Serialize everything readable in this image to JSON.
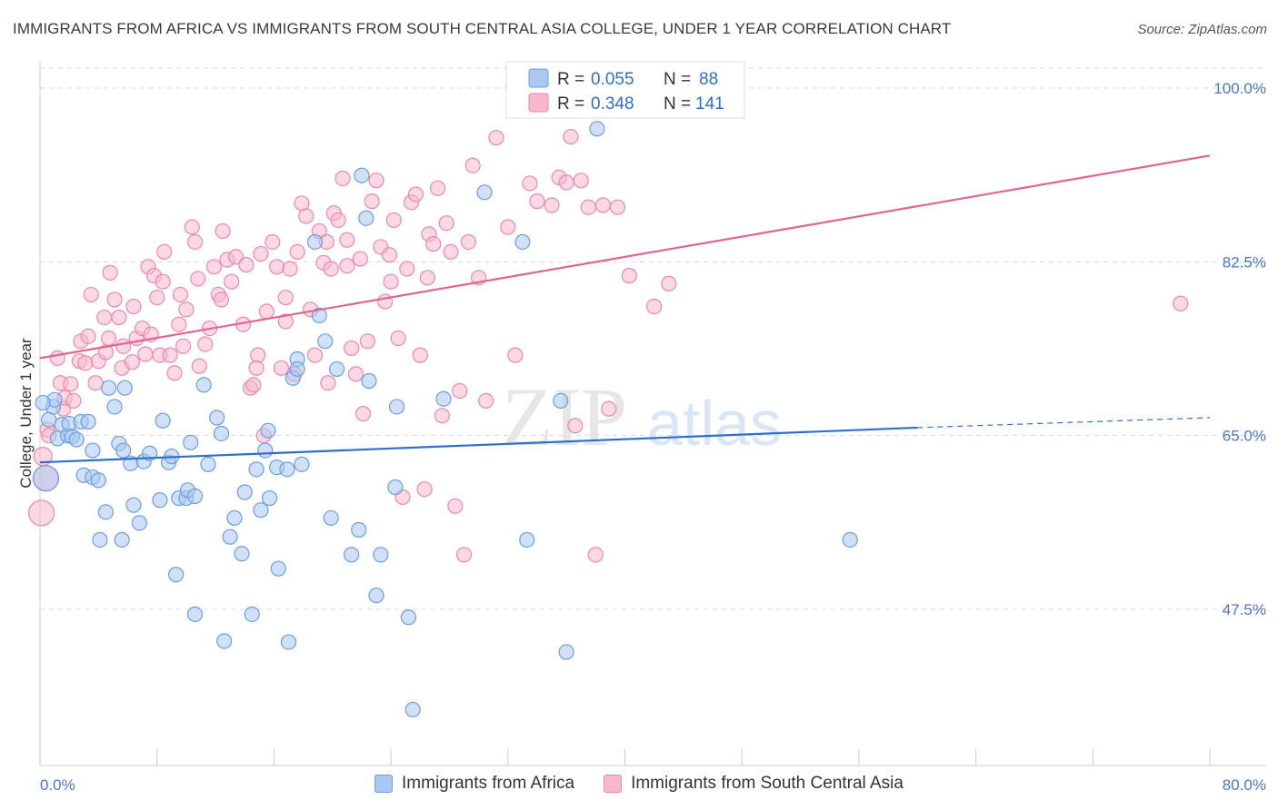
{
  "header": {
    "title": "IMMIGRANTS FROM AFRICA VS IMMIGRANTS FROM SOUTH CENTRAL ASIA COLLEGE, UNDER 1 YEAR CORRELATION CHART",
    "source": "Source: ZipAtlas.com"
  },
  "watermark": {
    "zip": "ZIP",
    "atlas": "atlas"
  },
  "colors": {
    "blue_fill": "#aac8f0",
    "blue_stroke": "#6b9ee0",
    "blue_line": "#2f6fcc",
    "pink_fill": "#f7b8cc",
    "pink_stroke": "#e98aa8",
    "pink_line": "#e06592",
    "grid": "#d9d9d9",
    "tick_label": "#4a76c9"
  },
  "legend": {
    "rows": [
      {
        "r_label": "R = ",
        "r_value": "0.055",
        "n_label": "N = ",
        "n_value": "88"
      },
      {
        "r_label": "R = ",
        "r_value": "0.348",
        "n_label": "N = ",
        "n_value": "141"
      }
    ]
  },
  "bottom_legend": {
    "africa": "Immigrants from Africa",
    "asia": "Immigrants from South Central Asia"
  },
  "chart_data": {
    "type": "scatter",
    "title": "IMMIGRANTS FROM AFRICA VS IMMIGRANTS FROM SOUTH CENTRAL ASIA COLLEGE, UNDER 1 YEAR CORRELATION CHART",
    "xlabel": "",
    "ylabel": "College, Under 1 year",
    "xlim": [
      0,
      80
    ],
    "ylim": [
      32,
      102
    ],
    "x_tick_labels": [
      "0.0%",
      "80.0%"
    ],
    "y_ticks": [
      47.5,
      65.0,
      82.5,
      100.0
    ],
    "y_tick_labels": [
      "47.5%",
      "65.0%",
      "82.5%",
      "100.0%"
    ],
    "grid": true,
    "legend_position": "top-center",
    "series": [
      {
        "name": "Immigrants from Africa",
        "r": 0.055,
        "n": 88,
        "trend": {
          "x0": 0,
          "y0": 62.3,
          "x1": 60,
          "y1": 65.8,
          "dashed_to_x": 80,
          "dashed_to_y": 66.8
        },
        "points": [
          [
            0.4,
            60.7,
            14
          ],
          [
            0.6,
            66.6,
            8
          ],
          [
            0.9,
            67.9,
            8
          ],
          [
            1.0,
            68.6,
            8
          ],
          [
            1.2,
            64.7,
            8
          ],
          [
            1.5,
            66.1,
            8
          ],
          [
            1.9,
            65.0,
            8
          ],
          [
            2.0,
            66.2,
            8
          ],
          [
            2.2,
            64.9,
            8
          ],
          [
            2.5,
            64.6,
            8
          ],
          [
            2.8,
            66.4,
            8
          ],
          [
            3.0,
            61.0,
            8
          ],
          [
            3.3,
            66.4,
            8
          ],
          [
            3.6,
            60.8,
            8
          ],
          [
            3.6,
            63.5,
            8
          ],
          [
            4.0,
            60.5,
            8
          ],
          [
            4.1,
            54.5,
            8
          ],
          [
            4.5,
            57.3,
            8
          ],
          [
            4.7,
            69.8,
            8
          ],
          [
            5.1,
            67.9,
            8
          ],
          [
            5.4,
            64.2,
            8
          ],
          [
            5.6,
            54.5,
            8
          ],
          [
            5.7,
            63.5,
            8
          ],
          [
            5.8,
            69.8,
            8
          ],
          [
            6.2,
            62.2,
            8
          ],
          [
            6.4,
            58.0,
            8
          ],
          [
            6.8,
            56.2,
            8
          ],
          [
            7.1,
            62.4,
            8
          ],
          [
            7.5,
            63.2,
            8
          ],
          [
            8.2,
            58.5,
            8
          ],
          [
            8.4,
            66.5,
            8
          ],
          [
            8.8,
            62.3,
            8
          ],
          [
            9.0,
            62.9,
            8
          ],
          [
            9.3,
            51.0,
            8
          ],
          [
            9.5,
            58.7,
            8
          ],
          [
            10.0,
            58.7,
            8
          ],
          [
            10.1,
            59.5,
            8
          ],
          [
            10.3,
            64.3,
            8
          ],
          [
            10.6,
            58.9,
            8
          ],
          [
            10.6,
            47.0,
            8
          ],
          [
            11.2,
            70.1,
            8
          ],
          [
            11.5,
            62.1,
            8
          ],
          [
            12.1,
            66.8,
            8
          ],
          [
            12.4,
            65.2,
            8
          ],
          [
            12.6,
            44.3,
            8
          ],
          [
            13.0,
            54.8,
            8
          ],
          [
            13.3,
            56.7,
            8
          ],
          [
            13.8,
            53.1,
            8
          ],
          [
            14.0,
            59.3,
            8
          ],
          [
            14.5,
            47.0,
            8
          ],
          [
            14.8,
            61.6,
            8
          ],
          [
            15.1,
            57.5,
            8
          ],
          [
            15.4,
            63.5,
            8
          ],
          [
            15.6,
            65.5,
            8
          ],
          [
            15.7,
            58.7,
            8
          ],
          [
            16.2,
            61.8,
            8
          ],
          [
            16.3,
            51.6,
            8
          ],
          [
            16.9,
            61.6,
            8
          ],
          [
            17.0,
            44.2,
            8
          ],
          [
            17.3,
            70.8,
            8
          ],
          [
            17.6,
            72.7,
            8
          ],
          [
            17.6,
            71.7,
            8
          ],
          [
            17.9,
            62.1,
            8
          ],
          [
            18.8,
            84.5,
            8
          ],
          [
            19.1,
            77.1,
            8
          ],
          [
            19.5,
            74.5,
            8
          ],
          [
            19.9,
            56.7,
            8
          ],
          [
            20.3,
            71.7,
            8
          ],
          [
            21.3,
            53.0,
            8
          ],
          [
            21.8,
            55.5,
            8
          ],
          [
            22.3,
            86.9,
            8
          ],
          [
            22.5,
            70.5,
            8
          ],
          [
            23.0,
            48.9,
            8
          ],
          [
            23.3,
            53.0,
            8
          ],
          [
            24.3,
            59.8,
            8
          ],
          [
            24.4,
            67.9,
            8
          ],
          [
            25.2,
            46.7,
            8
          ],
          [
            25.5,
            37.4,
            8
          ],
          [
            27.6,
            68.7,
            8
          ],
          [
            30.4,
            89.5,
            8
          ],
          [
            33.0,
            84.5,
            8
          ],
          [
            33.3,
            54.5,
            8
          ],
          [
            35.6,
            68.5,
            8
          ],
          [
            36.0,
            43.2,
            8
          ],
          [
            38.1,
            95.9,
            8
          ],
          [
            55.4,
            54.5,
            8
          ],
          [
            0.2,
            68.3,
            8
          ],
          [
            22.0,
            91.2,
            8
          ]
        ]
      },
      {
        "name": "Immigrants from South Central Asia",
        "r": 0.348,
        "n": 141,
        "trend": {
          "x0": 0,
          "y0": 72.8,
          "x1": 80,
          "y1": 93.2
        },
        "points": [
          [
            0.1,
            57.2,
            14
          ],
          [
            0.2,
            62.9,
            10
          ],
          [
            0.4,
            60.7,
            14
          ],
          [
            0.5,
            65.6,
            8
          ],
          [
            0.6,
            65.0,
            8
          ],
          [
            1.2,
            72.8,
            8
          ],
          [
            1.4,
            70.3,
            8
          ],
          [
            1.6,
            67.7,
            8
          ],
          [
            1.7,
            68.8,
            8
          ],
          [
            2.1,
            70.2,
            8
          ],
          [
            2.3,
            68.5,
            8
          ],
          [
            2.7,
            72.5,
            8
          ],
          [
            2.8,
            74.5,
            8
          ],
          [
            3.1,
            72.3,
            8
          ],
          [
            3.3,
            75.0,
            8
          ],
          [
            3.5,
            79.2,
            8
          ],
          [
            3.8,
            70.3,
            8
          ],
          [
            4.0,
            72.5,
            8
          ],
          [
            4.4,
            76.9,
            8
          ],
          [
            4.5,
            73.4,
            8
          ],
          [
            4.7,
            74.8,
            8
          ],
          [
            5.1,
            78.7,
            8
          ],
          [
            5.4,
            76.9,
            8
          ],
          [
            5.6,
            71.8,
            8
          ],
          [
            5.7,
            74.0,
            8
          ],
          [
            6.3,
            72.4,
            8
          ],
          [
            6.4,
            78.0,
            8
          ],
          [
            6.6,
            74.8,
            8
          ],
          [
            7.0,
            75.8,
            8
          ],
          [
            7.2,
            73.2,
            8
          ],
          [
            7.4,
            82.0,
            8
          ],
          [
            7.6,
            75.2,
            8
          ],
          [
            7.8,
            81.1,
            8
          ],
          [
            8.0,
            78.9,
            8
          ],
          [
            8.2,
            73.1,
            8
          ],
          [
            8.4,
            80.5,
            8
          ],
          [
            8.5,
            83.5,
            8
          ],
          [
            8.9,
            73.1,
            8
          ],
          [
            9.2,
            71.3,
            8
          ],
          [
            9.5,
            76.2,
            8
          ],
          [
            9.6,
            79.2,
            8
          ],
          [
            9.8,
            74.0,
            8
          ],
          [
            10.0,
            77.7,
            8
          ],
          [
            10.4,
            86.0,
            8
          ],
          [
            10.6,
            84.5,
            8
          ],
          [
            10.9,
            72.0,
            8
          ],
          [
            11.3,
            74.2,
            8
          ],
          [
            11.6,
            75.8,
            8
          ],
          [
            11.9,
            82.0,
            8
          ],
          [
            12.2,
            79.2,
            8
          ],
          [
            12.5,
            85.6,
            8
          ],
          [
            12.8,
            82.7,
            8
          ],
          [
            13.1,
            80.5,
            8
          ],
          [
            13.4,
            83.0,
            8
          ],
          [
            13.9,
            76.2,
            8
          ],
          [
            14.1,
            82.2,
            8
          ],
          [
            14.4,
            69.8,
            8
          ],
          [
            14.6,
            70.1,
            8
          ],
          [
            14.9,
            73.1,
            8
          ],
          [
            15.1,
            83.3,
            8
          ],
          [
            15.5,
            77.5,
            8
          ],
          [
            15.9,
            84.5,
            8
          ],
          [
            16.2,
            82.0,
            8
          ],
          [
            16.5,
            71.8,
            8
          ],
          [
            16.8,
            78.9,
            8
          ],
          [
            17.1,
            81.8,
            8
          ],
          [
            17.4,
            71.2,
            8
          ],
          [
            17.6,
            83.5,
            8
          ],
          [
            17.9,
            88.4,
            8
          ],
          [
            18.2,
            87.1,
            8
          ],
          [
            18.5,
            77.7,
            8
          ],
          [
            18.8,
            73.1,
            8
          ],
          [
            19.1,
            85.6,
            8
          ],
          [
            19.4,
            82.4,
            8
          ],
          [
            19.6,
            84.5,
            8
          ],
          [
            19.9,
            81.8,
            8
          ],
          [
            20.1,
            87.4,
            8
          ],
          [
            20.4,
            86.7,
            8
          ],
          [
            20.7,
            90.9,
            8
          ],
          [
            21.0,
            84.7,
            8
          ],
          [
            21.3,
            73.8,
            8
          ],
          [
            21.6,
            71.2,
            8
          ],
          [
            21.9,
            82.8,
            8
          ],
          [
            22.1,
            67.2,
            8
          ],
          [
            22.4,
            74.5,
            8
          ],
          [
            22.7,
            88.6,
            8
          ],
          [
            23.0,
            90.7,
            8
          ],
          [
            23.3,
            84.0,
            8
          ],
          [
            23.6,
            78.5,
            8
          ],
          [
            23.9,
            83.2,
            8
          ],
          [
            24.2,
            86.7,
            8
          ],
          [
            24.5,
            74.8,
            8
          ],
          [
            24.8,
            58.8,
            8
          ],
          [
            25.1,
            81.8,
            8
          ],
          [
            25.4,
            88.5,
            8
          ],
          [
            25.7,
            89.3,
            8
          ],
          [
            26.0,
            73.1,
            8
          ],
          [
            26.3,
            59.6,
            8
          ],
          [
            26.6,
            85.3,
            8
          ],
          [
            26.9,
            84.3,
            8
          ],
          [
            27.2,
            89.9,
            8
          ],
          [
            27.5,
            67.0,
            8
          ],
          [
            27.8,
            86.4,
            8
          ],
          [
            28.1,
            83.5,
            8
          ],
          [
            28.4,
            57.9,
            8
          ],
          [
            28.7,
            69.5,
            8
          ],
          [
            29.0,
            53.0,
            8
          ],
          [
            29.3,
            84.5,
            8
          ],
          [
            29.6,
            92.2,
            8
          ],
          [
            30.0,
            80.9,
            8
          ],
          [
            30.5,
            68.5,
            8
          ],
          [
            31.2,
            95.0,
            8
          ],
          [
            32.0,
            86.0,
            8
          ],
          [
            32.5,
            73.1,
            8
          ],
          [
            33.5,
            90.4,
            8
          ],
          [
            34.0,
            88.6,
            8
          ],
          [
            35.0,
            88.2,
            8
          ],
          [
            35.5,
            91.0,
            8
          ],
          [
            36.0,
            90.5,
            8
          ],
          [
            36.3,
            95.1,
            8
          ],
          [
            36.6,
            66.0,
            8
          ],
          [
            37.0,
            90.7,
            8
          ],
          [
            37.5,
            88.0,
            8
          ],
          [
            38.0,
            53.0,
            8
          ],
          [
            38.9,
            67.7,
            8
          ],
          [
            40.3,
            81.1,
            8
          ],
          [
            42.0,
            78.0,
            8
          ],
          [
            43.0,
            80.3,
            8
          ],
          [
            78.0,
            78.3,
            8
          ],
          [
            10.8,
            80.8,
            8
          ],
          [
            12.4,
            78.7,
            8
          ],
          [
            14.8,
            71.8,
            8
          ],
          [
            15.3,
            65.0,
            8
          ],
          [
            16.8,
            76.5,
            8
          ],
          [
            19.7,
            70.3,
            8
          ],
          [
            21.0,
            82.1,
            8
          ],
          [
            24.0,
            80.5,
            8
          ],
          [
            26.5,
            80.9,
            8
          ],
          [
            38.5,
            88.2,
            8
          ],
          [
            39.5,
            88.0,
            8
          ],
          [
            4.8,
            81.4,
            8
          ]
        ]
      }
    ]
  }
}
